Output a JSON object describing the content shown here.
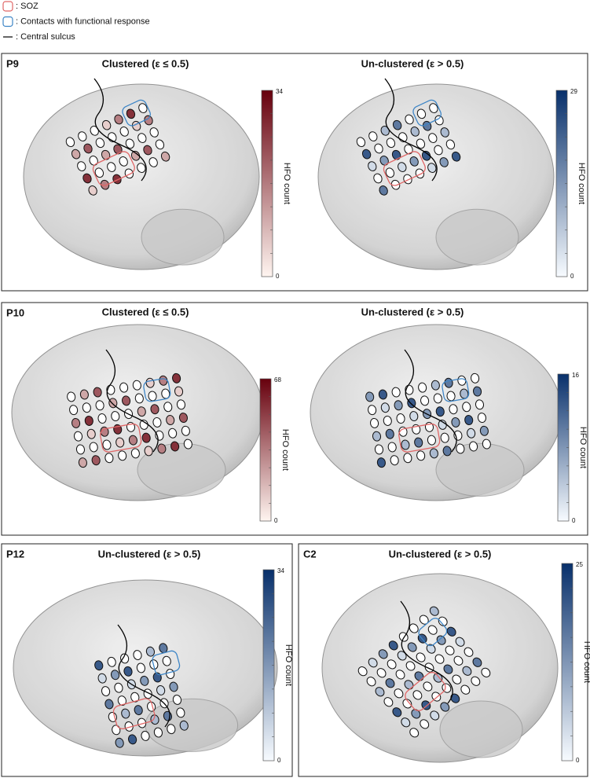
{
  "legend": [
    {
      "label": ": SOZ",
      "color": "#e06666",
      "marker": "box"
    },
    {
      "label": ": Contacts with functional response",
      "color": "#3d85c6",
      "marker": "box"
    },
    {
      "label": ": Central sulcus",
      "color": "#000000",
      "marker": "line"
    }
  ],
  "panels": [
    {
      "id": "P9",
      "subplots": [
        {
          "title": "Clustered (ε ≤ 0.5)",
          "colorbar": {
            "label": "HFO count",
            "min": 0,
            "max": 34,
            "colors": [
              "#fff5f0",
              "#67000d"
            ]
          }
        },
        {
          "title": "Un-clustered (ε > 0.5)",
          "colorbar": {
            "label": "HFO count",
            "min": 0,
            "max": 29,
            "colors": [
              "#f7fbff",
              "#08306b"
            ]
          }
        }
      ]
    },
    {
      "id": "P10",
      "subplots": [
        {
          "title": "Clustered (ε ≤ 0.5)",
          "colorbar": {
            "label": "HFO count",
            "min": 0,
            "max": 68,
            "colors": [
              "#fff5f0",
              "#67000d"
            ]
          }
        },
        {
          "title": "Un-clustered (ε > 0.5)",
          "colorbar": {
            "label": "HFO count",
            "min": 0,
            "max": 16,
            "colors": [
              "#f7fbff",
              "#08306b"
            ]
          }
        }
      ]
    },
    {
      "id": "P12",
      "subplots": [
        {
          "title": "Un-clustered (ε > 0.5)",
          "colorbar": {
            "label": "HFO count",
            "min": 0,
            "max": 34,
            "colors": [
              "#f7fbff",
              "#08306b"
            ]
          }
        }
      ]
    },
    {
      "id": "C2",
      "subplots": [
        {
          "title": "Un-clustered (ε > 0.5)",
          "colorbar": {
            "label": "HFO count",
            "min": 0,
            "max": 25,
            "colors": [
              "#f7fbff",
              "#08306b"
            ]
          }
        }
      ]
    }
  ]
}
